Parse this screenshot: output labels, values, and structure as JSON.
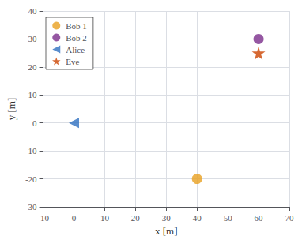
{
  "chart_data": {
    "type": "scatter",
    "xlabel": "x [m]",
    "ylabel": "y [m]",
    "xlim": [
      -10,
      70
    ],
    "ylim": [
      -30,
      40
    ],
    "xticks": [
      -10,
      0,
      10,
      20,
      30,
      40,
      50,
      60,
      70
    ],
    "yticks": [
      -30,
      -20,
      -10,
      0,
      10,
      20,
      30,
      40
    ],
    "grid": true,
    "legend": "upper left",
    "series": [
      {
        "name": "Bob 1",
        "color": "#E8A020",
        "marker": "circle",
        "x": [
          40
        ],
        "values": [
          -20
        ]
      },
      {
        "name": "Bob 2",
        "color": "#7B2D8B",
        "marker": "circle",
        "x": [
          60
        ],
        "values": [
          30
        ]
      },
      {
        "name": "Alice",
        "color": "#3070C0",
        "marker": "triangle-left",
        "x": [
          0
        ],
        "values": [
          0
        ]
      },
      {
        "name": "Eve",
        "color": "#CC4400",
        "marker": "star",
        "x": [
          60
        ],
        "values": [
          25
        ]
      }
    ]
  }
}
